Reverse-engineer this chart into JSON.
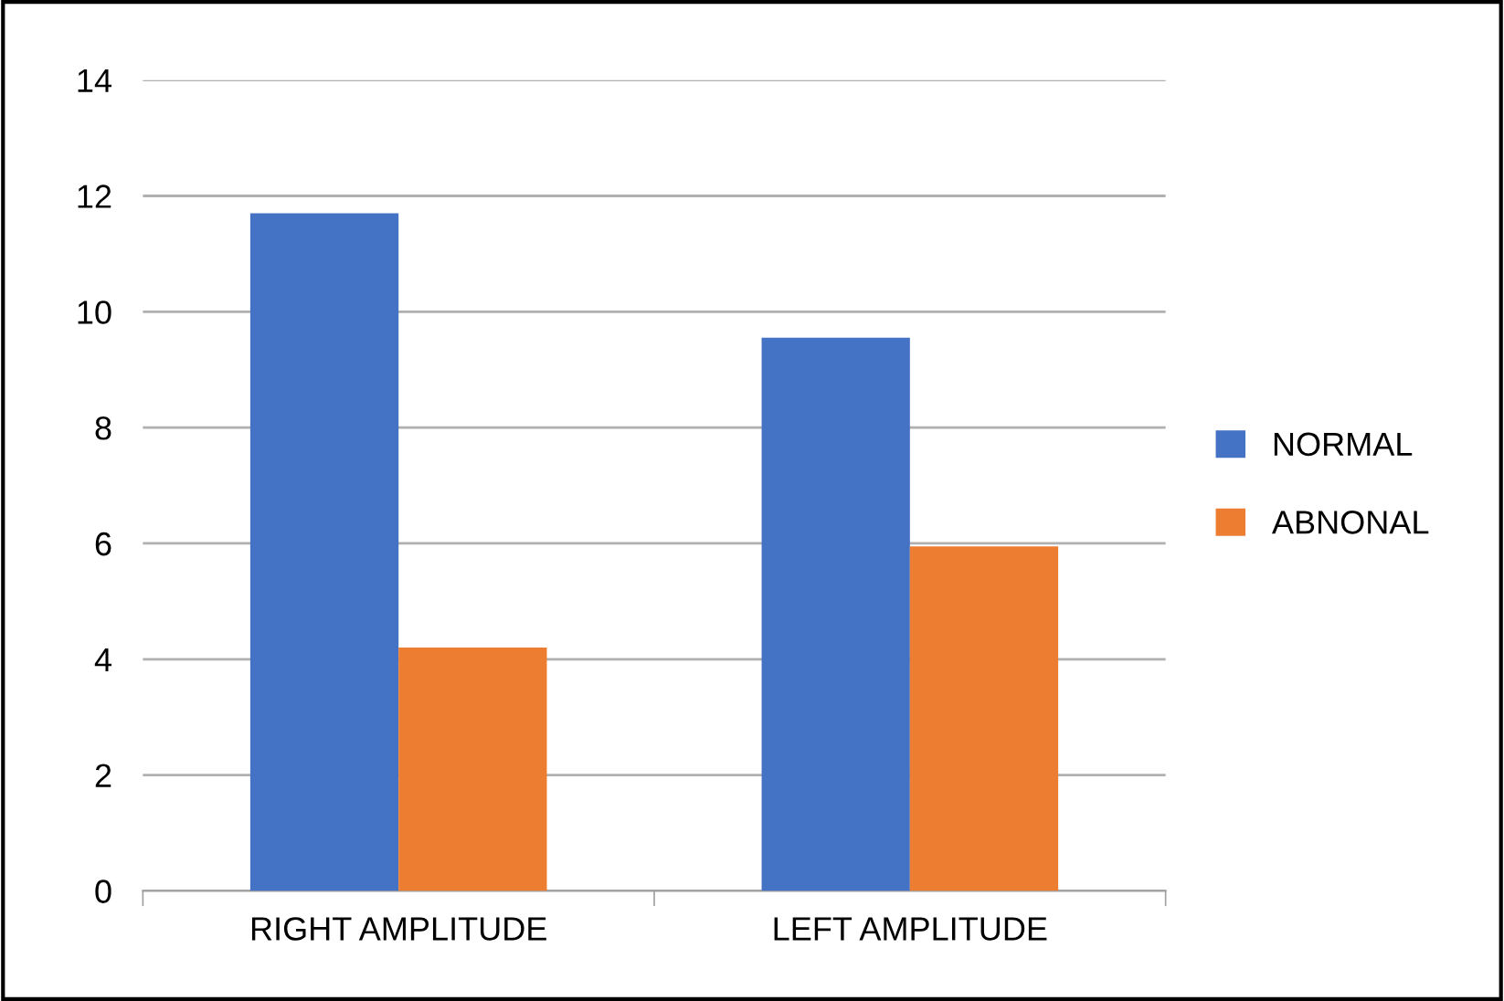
{
  "chart_data": {
    "type": "bar",
    "categories": [
      "RIGHT AMPLITUDE",
      "LEFT AMPLITUDE"
    ],
    "series": [
      {
        "name": "NORMAL",
        "color": "#4472c4",
        "values": [
          11.7,
          9.55
        ]
      },
      {
        "name": "ABNONAL",
        "color": "#ed7d31",
        "values": [
          4.2,
          5.95
        ]
      }
    ],
    "ylim": [
      0,
      14
    ],
    "yticks": [
      0,
      2,
      4,
      6,
      8,
      10,
      12,
      14
    ],
    "grid": "y",
    "legend": "right"
  }
}
